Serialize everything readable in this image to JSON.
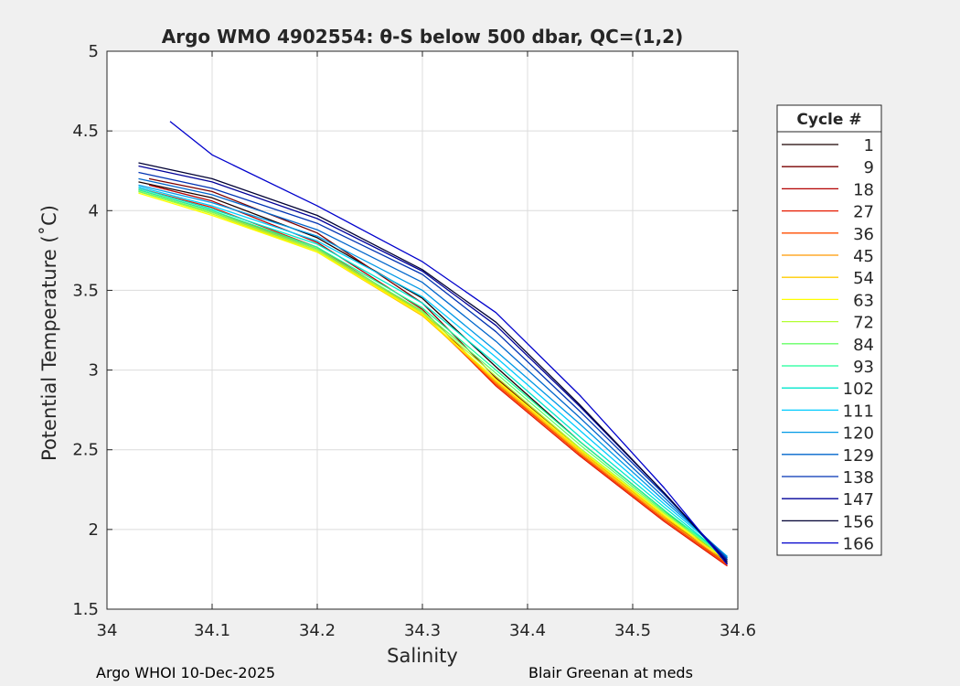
{
  "chart_data": {
    "type": "line",
    "title": "Argo WMO 4902554: θ-S below 500 dbar,  QC=(1,2)",
    "xlabel": "Salinity",
    "ylabel": "Potential Temperature (˚C)",
    "xlim": [
      34.0,
      34.6
    ],
    "ylim": [
      1.5,
      5.0
    ],
    "xticks": [
      34.0,
      34.1,
      34.2,
      34.3,
      34.4,
      34.5,
      34.6
    ],
    "xtick_labels": [
      "34",
      "34.1",
      "34.2",
      "34.3",
      "34.4",
      "34.5",
      "34.6"
    ],
    "yticks": [
      1.5,
      2.0,
      2.5,
      3.0,
      3.5,
      4.0,
      4.5,
      5.0
    ],
    "ytick_labels": [
      "1.5",
      "2",
      "2.5",
      "3",
      "3.5",
      "4",
      "4.5",
      "5"
    ],
    "grid": true,
    "legend": {
      "title": "Cycle #",
      "placement": "outside-right",
      "entries": [
        {
          "name": "1",
          "color": "#1a0000"
        },
        {
          "name": "9",
          "color": "#7a0000"
        },
        {
          "name": "18",
          "color": "#b30000"
        },
        {
          "name": "27",
          "color": "#e61a00"
        },
        {
          "name": "36",
          "color": "#ff4d00"
        },
        {
          "name": "45",
          "color": "#ff9900"
        },
        {
          "name": "54",
          "color": "#ffcc00"
        },
        {
          "name": "63",
          "color": "#ffff00"
        },
        {
          "name": "72",
          "color": "#b3ff33"
        },
        {
          "name": "84",
          "color": "#66ff66"
        },
        {
          "name": "93",
          "color": "#1aff99"
        },
        {
          "name": "102",
          "color": "#00e6cc"
        },
        {
          "name": "111",
          "color": "#00ccff"
        },
        {
          "name": "120",
          "color": "#0099e6"
        },
        {
          "name": "129",
          "color": "#0066cc"
        },
        {
          "name": "138",
          "color": "#0033b3"
        },
        {
          "name": "147",
          "color": "#000099"
        },
        {
          "name": "156",
          "color": "#000033"
        },
        {
          "name": "166",
          "color": "#0000cc"
        }
      ]
    },
    "series": [
      {
        "name": "1",
        "color": "#1a0000",
        "x": [
          34.03,
          34.1,
          34.2,
          34.3,
          34.37,
          34.45,
          34.53,
          34.59
        ],
        "y": [
          4.18,
          4.08,
          3.83,
          3.45,
          3.02,
          2.55,
          2.12,
          1.79
        ]
      },
      {
        "name": "9",
        "color": "#7a0000",
        "x": [
          34.04,
          34.1,
          34.2,
          34.3,
          34.37,
          34.45,
          34.53,
          34.59
        ],
        "y": [
          4.2,
          4.12,
          3.86,
          3.42,
          2.95,
          2.5,
          2.08,
          1.78
        ]
      },
      {
        "name": "18",
        "color": "#b30000",
        "x": [
          34.04,
          34.1,
          34.2,
          34.3,
          34.37,
          34.45,
          34.53,
          34.59
        ],
        "y": [
          4.16,
          4.06,
          3.8,
          3.38,
          2.92,
          2.47,
          2.06,
          1.78
        ]
      },
      {
        "name": "27",
        "color": "#e61a00",
        "x": [
          34.03,
          34.1,
          34.2,
          34.3,
          34.37,
          34.45,
          34.53,
          34.59
        ],
        "y": [
          4.14,
          4.02,
          3.77,
          3.36,
          2.9,
          2.46,
          2.05,
          1.77
        ]
      },
      {
        "name": "36",
        "color": "#ff4d00",
        "x": [
          34.03,
          34.1,
          34.2,
          34.3,
          34.37,
          34.45,
          34.53,
          34.59
        ],
        "y": [
          4.13,
          4.0,
          3.76,
          3.35,
          2.91,
          2.47,
          2.06,
          1.78
        ]
      },
      {
        "name": "45",
        "color": "#ff9900",
        "x": [
          34.03,
          34.1,
          34.2,
          34.3,
          34.37,
          34.45,
          34.53,
          34.59
        ],
        "y": [
          4.12,
          3.99,
          3.75,
          3.35,
          2.92,
          2.48,
          2.07,
          1.79
        ]
      },
      {
        "name": "54",
        "color": "#ffcc00",
        "x": [
          34.03,
          34.1,
          34.2,
          34.3,
          34.37,
          34.45,
          34.53,
          34.59
        ],
        "y": [
          4.12,
          3.98,
          3.74,
          3.34,
          2.93,
          2.49,
          2.08,
          1.8
        ]
      },
      {
        "name": "63",
        "color": "#ffff00",
        "x": [
          34.03,
          34.1,
          34.2,
          34.3,
          34.37,
          34.45,
          34.53,
          34.59
        ],
        "y": [
          4.11,
          3.97,
          3.74,
          3.35,
          2.94,
          2.5,
          2.09,
          1.8
        ]
      },
      {
        "name": "72",
        "color": "#b3ff33",
        "x": [
          34.03,
          34.1,
          34.2,
          34.3,
          34.37,
          34.45,
          34.53,
          34.59
        ],
        "y": [
          4.12,
          3.98,
          3.75,
          3.36,
          2.96,
          2.51,
          2.1,
          1.81
        ]
      },
      {
        "name": "84",
        "color": "#66ff66",
        "x": [
          34.03,
          34.1,
          34.2,
          34.3,
          34.37,
          34.45,
          34.53,
          34.59
        ],
        "y": [
          4.12,
          3.99,
          3.76,
          3.37,
          2.98,
          2.53,
          2.11,
          1.81
        ]
      },
      {
        "name": "93",
        "color": "#1aff99",
        "x": [
          34.03,
          34.1,
          34.2,
          34.3,
          34.37,
          34.45,
          34.53,
          34.59
        ],
        "y": [
          4.13,
          4.0,
          3.77,
          3.39,
          3.0,
          2.55,
          2.12,
          1.82
        ]
      },
      {
        "name": "102",
        "color": "#00e6cc",
        "x": [
          34.03,
          34.1,
          34.2,
          34.3,
          34.37,
          34.45,
          34.53,
          34.59
        ],
        "y": [
          4.14,
          4.01,
          3.79,
          3.42,
          3.04,
          2.58,
          2.14,
          1.82
        ]
      },
      {
        "name": "111",
        "color": "#00ccff",
        "x": [
          34.03,
          34.1,
          34.2,
          34.3,
          34.37,
          34.45,
          34.53,
          34.59
        ],
        "y": [
          4.15,
          4.03,
          3.81,
          3.46,
          3.08,
          2.62,
          2.16,
          1.83
        ]
      },
      {
        "name": "120",
        "color": "#0099e6",
        "x": [
          34.03,
          34.1,
          34.2,
          34.3,
          34.37,
          34.45,
          34.53,
          34.59
        ],
        "y": [
          4.16,
          4.05,
          3.84,
          3.5,
          3.12,
          2.66,
          2.18,
          1.83
        ]
      },
      {
        "name": "129",
        "color": "#0066cc",
        "x": [
          34.03,
          34.1,
          34.2,
          34.3,
          34.37,
          34.45,
          34.53,
          34.59
        ],
        "y": [
          4.2,
          4.1,
          3.88,
          3.55,
          3.18,
          2.7,
          2.2,
          1.82
        ]
      },
      {
        "name": "138",
        "color": "#0033b3",
        "x": [
          34.03,
          34.1,
          34.2,
          34.3,
          34.37,
          34.45,
          34.53,
          34.59
        ],
        "y": [
          4.24,
          4.14,
          3.92,
          3.6,
          3.24,
          2.74,
          2.22,
          1.81
        ]
      },
      {
        "name": "147",
        "color": "#000099",
        "x": [
          34.03,
          34.1,
          34.2,
          34.3,
          34.37,
          34.45,
          34.53,
          34.59
        ],
        "y": [
          4.28,
          4.18,
          3.95,
          3.62,
          3.28,
          2.77,
          2.23,
          1.8
        ]
      },
      {
        "name": "156",
        "color": "#000033",
        "x": [
          34.03,
          34.1,
          34.2,
          34.3,
          34.37,
          34.45,
          34.53,
          34.59
        ],
        "y": [
          4.3,
          4.2,
          3.97,
          3.63,
          3.3,
          2.78,
          2.23,
          1.79
        ]
      },
      {
        "name": "166",
        "color": "#0000cc",
        "x": [
          34.06,
          34.1,
          34.2,
          34.3,
          34.37,
          34.45,
          34.53,
          34.59
        ],
        "y": [
          4.56,
          4.35,
          4.03,
          3.68,
          3.36,
          2.84,
          2.26,
          1.78
        ]
      }
    ]
  },
  "footer": {
    "left": "Argo WHOI 10-Dec-2025",
    "right": "Blair Greenan at meds"
  }
}
